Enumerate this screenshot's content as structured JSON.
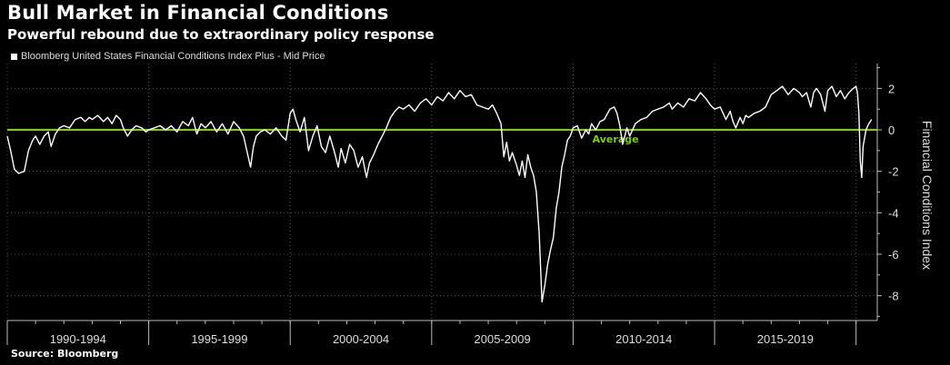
{
  "chart_data": {
    "type": "line",
    "title": "Bull Market in Financial Conditions",
    "subtitle": "Powerful rebound due to extraordinary policy response",
    "legend": "Bloomberg United States Financial Conditions Index Plus - Mid Price",
    "ylabel": "Financial Conditions Index",
    "source": "Source: Bloomberg",
    "ylim": [
      -9.2,
      3.2
    ],
    "xlim": [
      1990.0,
      2020.75
    ],
    "y_ticks": [
      "2",
      "0",
      "-2",
      "-4",
      "-6",
      "-8"
    ],
    "y_tick_values": [
      2,
      0,
      -2,
      -4,
      -6,
      -8
    ],
    "x_tick_labels": [
      "1990-1994",
      "1995-1999",
      "2000-2004",
      "2005-2009",
      "2010-2014",
      "2015-2019"
    ],
    "x_period_bounds": [
      1990.0,
      1995.0,
      2000.0,
      2005.0,
      2010.0,
      2015.0,
      2020.0
    ],
    "reference_line": {
      "value": 0,
      "label": "Average",
      "color": "#7ec82a"
    },
    "line_color": "#ffffff",
    "grid": true,
    "series": [
      {
        "name": "Bloomberg United States Financial Conditions Index Plus - Mid Price",
        "x": [
          1990.0,
          1990.12,
          1990.25,
          1990.4,
          1990.6,
          1990.75,
          1990.9,
          1991.0,
          1991.15,
          1991.3,
          1991.45,
          1991.55,
          1991.7,
          1991.85,
          1992.0,
          1992.2,
          1992.4,
          1992.6,
          1992.75,
          1992.9,
          1993.0,
          1993.2,
          1993.4,
          1993.55,
          1993.7,
          1993.85,
          1994.0,
          1994.1,
          1994.25,
          1994.4,
          1994.55,
          1994.75,
          1994.9,
          1995.0,
          1995.2,
          1995.4,
          1995.6,
          1995.8,
          1996.0,
          1996.2,
          1996.4,
          1996.55,
          1996.7,
          1996.85,
          1997.0,
          1997.2,
          1997.4,
          1997.6,
          1997.8,
          1998.0,
          1998.2,
          1998.35,
          1998.5,
          1998.6,
          1998.7,
          1998.8,
          1998.95,
          1999.1,
          1999.3,
          1999.5,
          1999.7,
          1999.85,
          2000.0,
          2000.1,
          2000.2,
          2000.35,
          2000.5,
          2000.65,
          2000.8,
          2000.95,
          2001.1,
          2001.25,
          2001.4,
          2001.55,
          2001.7,
          2001.8,
          2001.95,
          2002.1,
          2002.25,
          2002.4,
          2002.55,
          2002.7,
          2002.8,
          2002.95,
          2003.1,
          2003.25,
          2003.4,
          2003.55,
          2003.7,
          2003.85,
          2004.0,
          2004.2,
          2004.4,
          2004.6,
          2004.8,
          2005.0,
          2005.2,
          2005.4,
          2005.6,
          2005.8,
          2006.0,
          2006.2,
          2006.4,
          2006.6,
          2006.8,
          2007.0,
          2007.15,
          2007.3,
          2007.45,
          2007.55,
          2007.65,
          2007.75,
          2007.85,
          2008.0,
          2008.1,
          2008.2,
          2008.3,
          2008.4,
          2008.5,
          2008.6,
          2008.7,
          2008.8,
          2008.9,
          2009.0,
          2009.1,
          2009.2,
          2009.3,
          2009.4,
          2009.5,
          2009.6,
          2009.7,
          2009.8,
          2009.9,
          2010.0,
          2010.15,
          2010.3,
          2010.45,
          2010.55,
          2010.65,
          2010.8,
          2010.95,
          2011.1,
          2011.3,
          2011.45,
          2011.55,
          2011.65,
          2011.75,
          2011.9,
          2012.0,
          2012.2,
          2012.4,
          2012.6,
          2012.8,
          2013.0,
          2013.2,
          2013.4,
          2013.5,
          2013.7,
          2013.9,
          2014.1,
          2014.3,
          2014.5,
          2014.7,
          2014.85,
          2015.0,
          2015.2,
          2015.4,
          2015.55,
          2015.65,
          2015.75,
          2015.9,
          2016.0,
          2016.1,
          2016.2,
          2016.4,
          2016.6,
          2016.8,
          2017.0,
          2017.2,
          2017.4,
          2017.6,
          2017.8,
          2018.0,
          2018.1,
          2018.25,
          2018.4,
          2018.5,
          2018.6,
          2018.75,
          2018.9,
          2019.0,
          2019.15,
          2019.3,
          2019.45,
          2019.6,
          2019.75,
          2019.9,
          2020.0,
          2020.05,
          2020.1,
          2020.15,
          2020.2,
          2020.25,
          2020.35,
          2020.45,
          2020.55
        ],
        "values": [
          -0.3,
          -1.0,
          -1.9,
          -2.1,
          -2.0,
          -1.0,
          -0.5,
          -0.3,
          -0.7,
          -0.3,
          -0.1,
          -0.8,
          -0.2,
          0.1,
          0.2,
          0.1,
          0.5,
          0.6,
          0.4,
          0.6,
          0.5,
          0.7,
          0.4,
          0.6,
          0.3,
          0.7,
          0.5,
          0.1,
          -0.3,
          0.0,
          0.2,
          0.1,
          -0.1,
          0.0,
          0.1,
          0.2,
          0.0,
          0.2,
          -0.1,
          0.4,
          0.2,
          0.6,
          -0.2,
          0.3,
          0.1,
          0.4,
          -0.1,
          0.3,
          -0.2,
          0.4,
          0.1,
          -0.3,
          -1.2,
          -1.8,
          -0.8,
          -0.3,
          -0.1,
          0.0,
          -0.2,
          0.1,
          -0.3,
          -0.5,
          0.8,
          1.0,
          0.5,
          -0.1,
          0.6,
          -1.0,
          -0.3,
          0.2,
          -0.8,
          -1.1,
          -0.3,
          -1.0,
          -1.8,
          -0.9,
          -1.6,
          -0.7,
          -1.0,
          -1.8,
          -1.3,
          -2.3,
          -1.6,
          -1.2,
          -0.7,
          -0.3,
          0.1,
          0.6,
          0.9,
          1.1,
          1.0,
          1.2,
          0.9,
          1.3,
          1.5,
          1.2,
          1.6,
          1.4,
          1.8,
          1.5,
          1.9,
          1.6,
          1.7,
          1.2,
          1.1,
          1.0,
          1.2,
          0.8,
          0.3,
          -1.3,
          -0.6,
          -1.5,
          -1.1,
          -1.7,
          -2.2,
          -1.5,
          -2.3,
          -1.2,
          -1.8,
          -2.2,
          -3.0,
          -5.0,
          -8.3,
          -7.5,
          -6.5,
          -5.8,
          -5.2,
          -3.8,
          -3.0,
          -1.8,
          -1.2,
          -0.5,
          -0.3,
          0.1,
          0.2,
          -0.4,
          0.0,
          -0.2,
          0.3,
          0.0,
          0.4,
          0.5,
          1.0,
          1.1,
          0.8,
          0.2,
          -0.7,
          0.1,
          -0.3,
          0.3,
          0.5,
          0.6,
          0.9,
          1.0,
          1.1,
          1.3,
          1.0,
          1.3,
          1.1,
          1.5,
          1.4,
          1.8,
          1.5,
          1.2,
          1.0,
          1.1,
          0.5,
          0.9,
          0.4,
          0.1,
          0.6,
          0.3,
          0.7,
          0.6,
          0.8,
          0.9,
          1.1,
          1.7,
          1.9,
          2.1,
          1.7,
          2.0,
          1.8,
          1.6,
          1.8,
          1.1,
          1.8,
          2.0,
          1.7,
          0.9,
          1.9,
          2.1,
          1.6,
          1.9,
          1.5,
          1.8,
          2.0,
          2.1,
          1.8,
          0.8,
          -1.5,
          -2.3,
          -0.8,
          0.0,
          0.3,
          0.5
        ]
      }
    ]
  }
}
